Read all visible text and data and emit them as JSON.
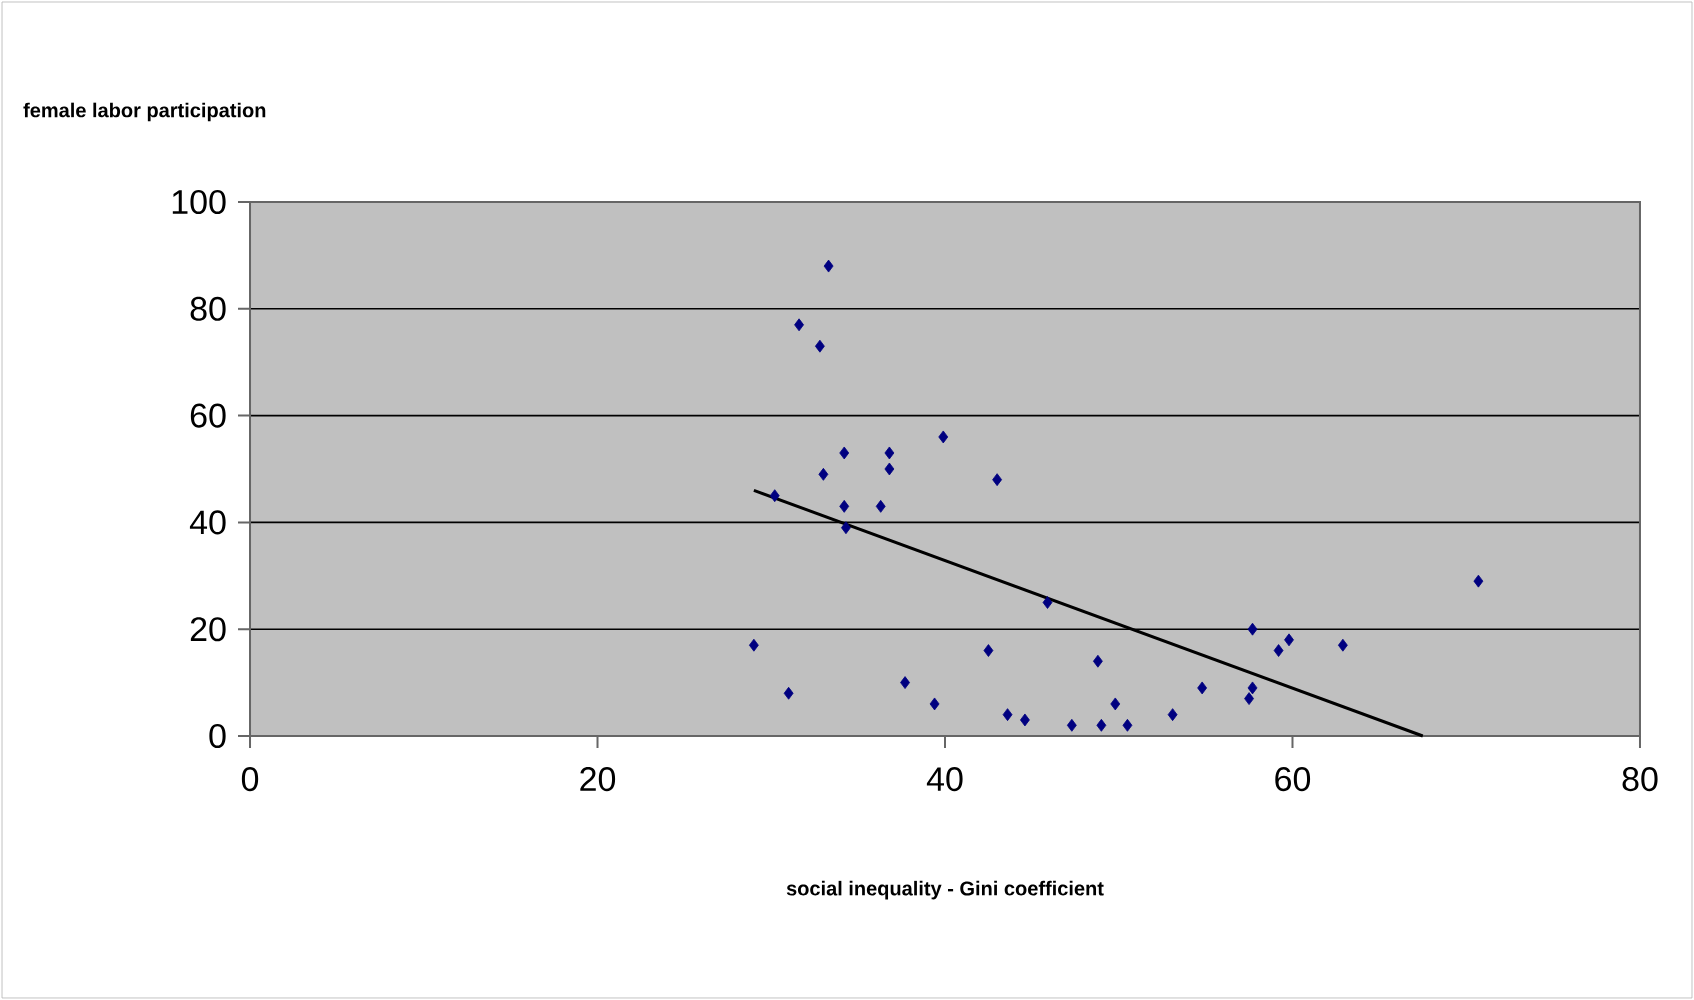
{
  "chart_data": {
    "type": "scatter",
    "ylabel": "female labor participation",
    "xlabel": "social inequality - Gini coefficient",
    "xlim": [
      0,
      80
    ],
    "xticks": [
      0,
      20,
      40,
      60,
      80
    ],
    "ylim": [
      0,
      100
    ],
    "yticks": [
      0,
      20,
      40,
      60,
      80,
      100
    ],
    "grid": "y",
    "series": [
      {
        "color": "#000080",
        "marker": "diamond",
        "x": [
          29,
          30.2,
          31,
          31.6,
          32.8,
          33.3,
          33,
          34.2,
          34.2,
          34.3,
          36.3,
          36.8,
          36.8,
          37.7,
          39.4,
          39.9,
          42.5,
          43,
          43.6,
          44.6,
          45.9,
          47.3,
          48.8,
          49,
          49.8,
          50.5,
          53.1,
          54.8,
          57.7,
          57.5,
          57.7,
          59.2,
          59.8,
          62.9,
          70.7
        ],
        "values": [
          17,
          45,
          8,
          77,
          73,
          88,
          49,
          53,
          43,
          39,
          43,
          53,
          50,
          10,
          6,
          56,
          16,
          48,
          4,
          3,
          25,
          2,
          14,
          2,
          6,
          2,
          4,
          9,
          20,
          7,
          9,
          16,
          18,
          17,
          29
        ]
      },
      {
        "type": "line",
        "marker": "none",
        "color": "#000000",
        "x": [
          29,
          67.5
        ],
        "values": [
          46,
          0
        ]
      }
    ]
  }
}
